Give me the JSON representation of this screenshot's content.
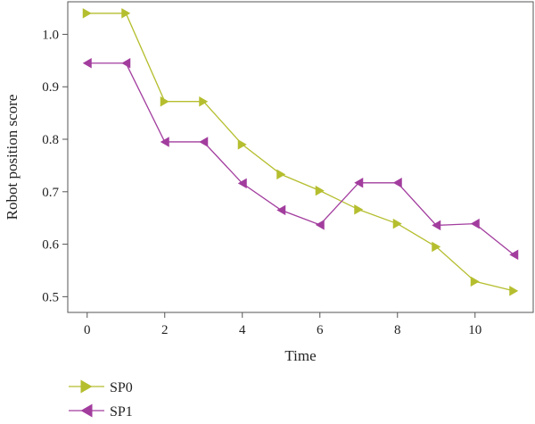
{
  "chart_data": {
    "type": "line",
    "xlabel": "Time",
    "ylabel": "Robot position score",
    "xlim": [
      -0.5,
      11.5
    ],
    "ylim": [
      0.47,
      1.062
    ],
    "xticks": [
      0,
      2,
      4,
      6,
      8,
      10
    ],
    "xtick_labels": [
      "0",
      "2",
      "4",
      "6",
      "8",
      "10"
    ],
    "yticks": [
      0.5,
      0.6,
      0.7,
      0.8,
      0.9,
      1.0
    ],
    "ytick_labels": [
      "0.5",
      "0.6",
      "0.7",
      "0.8",
      "0.9",
      "1.0"
    ],
    "grid": false,
    "legend_position": "bottom-left, below plot",
    "x": [
      0,
      1,
      2,
      3,
      4,
      5,
      6,
      7,
      8,
      9,
      10,
      11
    ],
    "series": [
      {
        "name": "SP0",
        "marker": "triangle-right",
        "color": "#b5be2e",
        "values": [
          1.04,
          1.04,
          0.872,
          0.872,
          0.79,
          0.733,
          0.702,
          0.666,
          0.639,
          0.595,
          0.529,
          0.511
        ]
      },
      {
        "name": "SP1",
        "marker": "triangle-left",
        "color": "#a23d9e",
        "values": [
          0.945,
          0.945,
          0.795,
          0.795,
          0.716,
          0.665,
          0.637,
          0.717,
          0.717,
          0.636,
          0.639,
          0.58
        ]
      }
    ]
  }
}
